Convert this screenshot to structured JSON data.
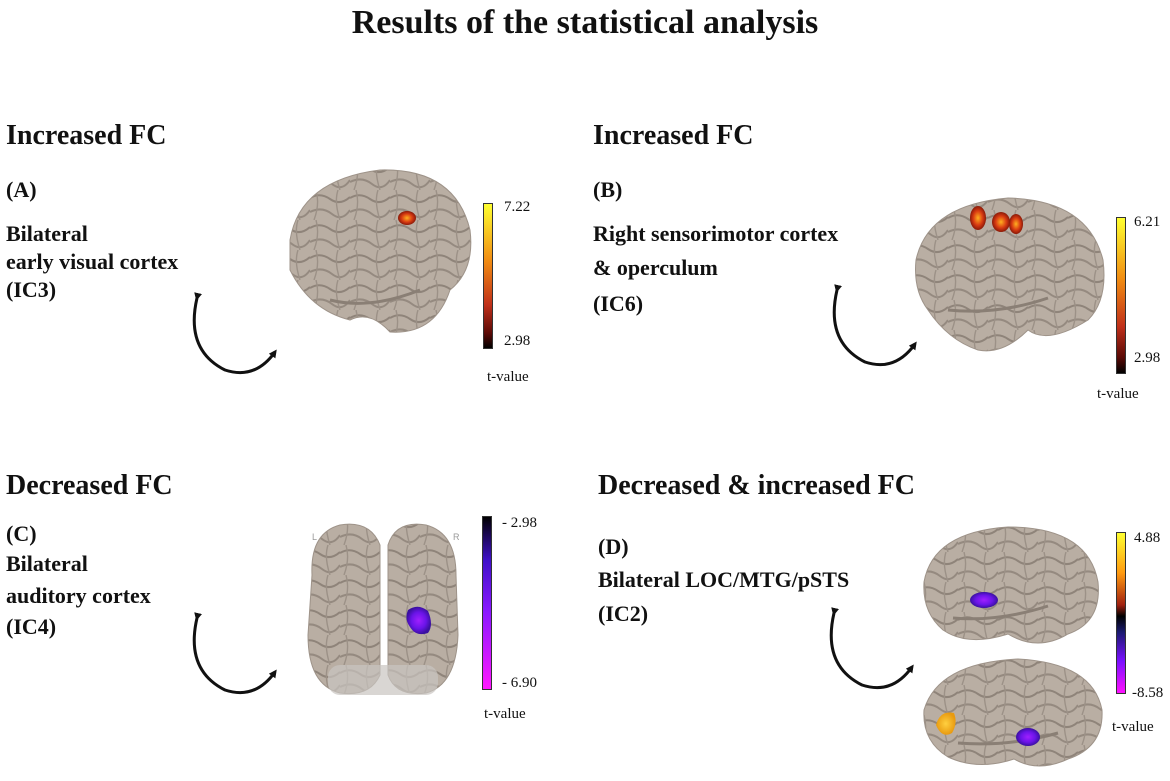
{
  "title": "Results of the statistical analysis",
  "colors": {
    "hot_scale": [
      "#000000",
      "#5a0a06",
      "#c0301a",
      "#f08a12",
      "#ffff30"
    ],
    "cool_scale": [
      "#000000",
      "#3f10c8",
      "#8a18ff",
      "#ff18ff"
    ],
    "bipolar_scale": [
      "#ff10ff",
      "#7a10ff",
      "#1a1a70",
      "#000000",
      "#a02010",
      "#ff9a10",
      "#ffff30"
    ],
    "brain": "#b8ada2"
  },
  "panels": {
    "a": {
      "heading": "Increased FC",
      "tag": "(A)",
      "region_line1": "Bilateral",
      "region_line2": "early visual cortex",
      "component": "(IC3)",
      "colorbar": {
        "max_label": "7.22",
        "min_label": "2.98",
        "unit": "t-value"
      }
    },
    "b": {
      "heading": "Increased FC",
      "tag": "(B)",
      "region_line1": "Right sensorimotor cortex",
      "region_line2": "& operculum",
      "component": "(IC6)",
      "colorbar": {
        "max_label": "6.21",
        "min_label": "2.98",
        "unit": "t-value"
      }
    },
    "c": {
      "heading": "Decreased FC",
      "tag": "(C)",
      "region_line1": "Bilateral",
      "region_line2": "auditory cortex",
      "component": "(IC4)",
      "colorbar": {
        "max_label": "- 2.98",
        "min_label": "- 6.90",
        "unit": "t-value"
      },
      "view_left": "L",
      "view_right": "R"
    },
    "d": {
      "heading": "Decreased & increased FC",
      "tag": "(D)",
      "region_line1": "Bilateral LOC/MTG/pSTS",
      "component": "(IC2)",
      "colorbar": {
        "max_label": "4.88",
        "min_label": "-8.58",
        "unit": "t-value"
      }
    }
  }
}
